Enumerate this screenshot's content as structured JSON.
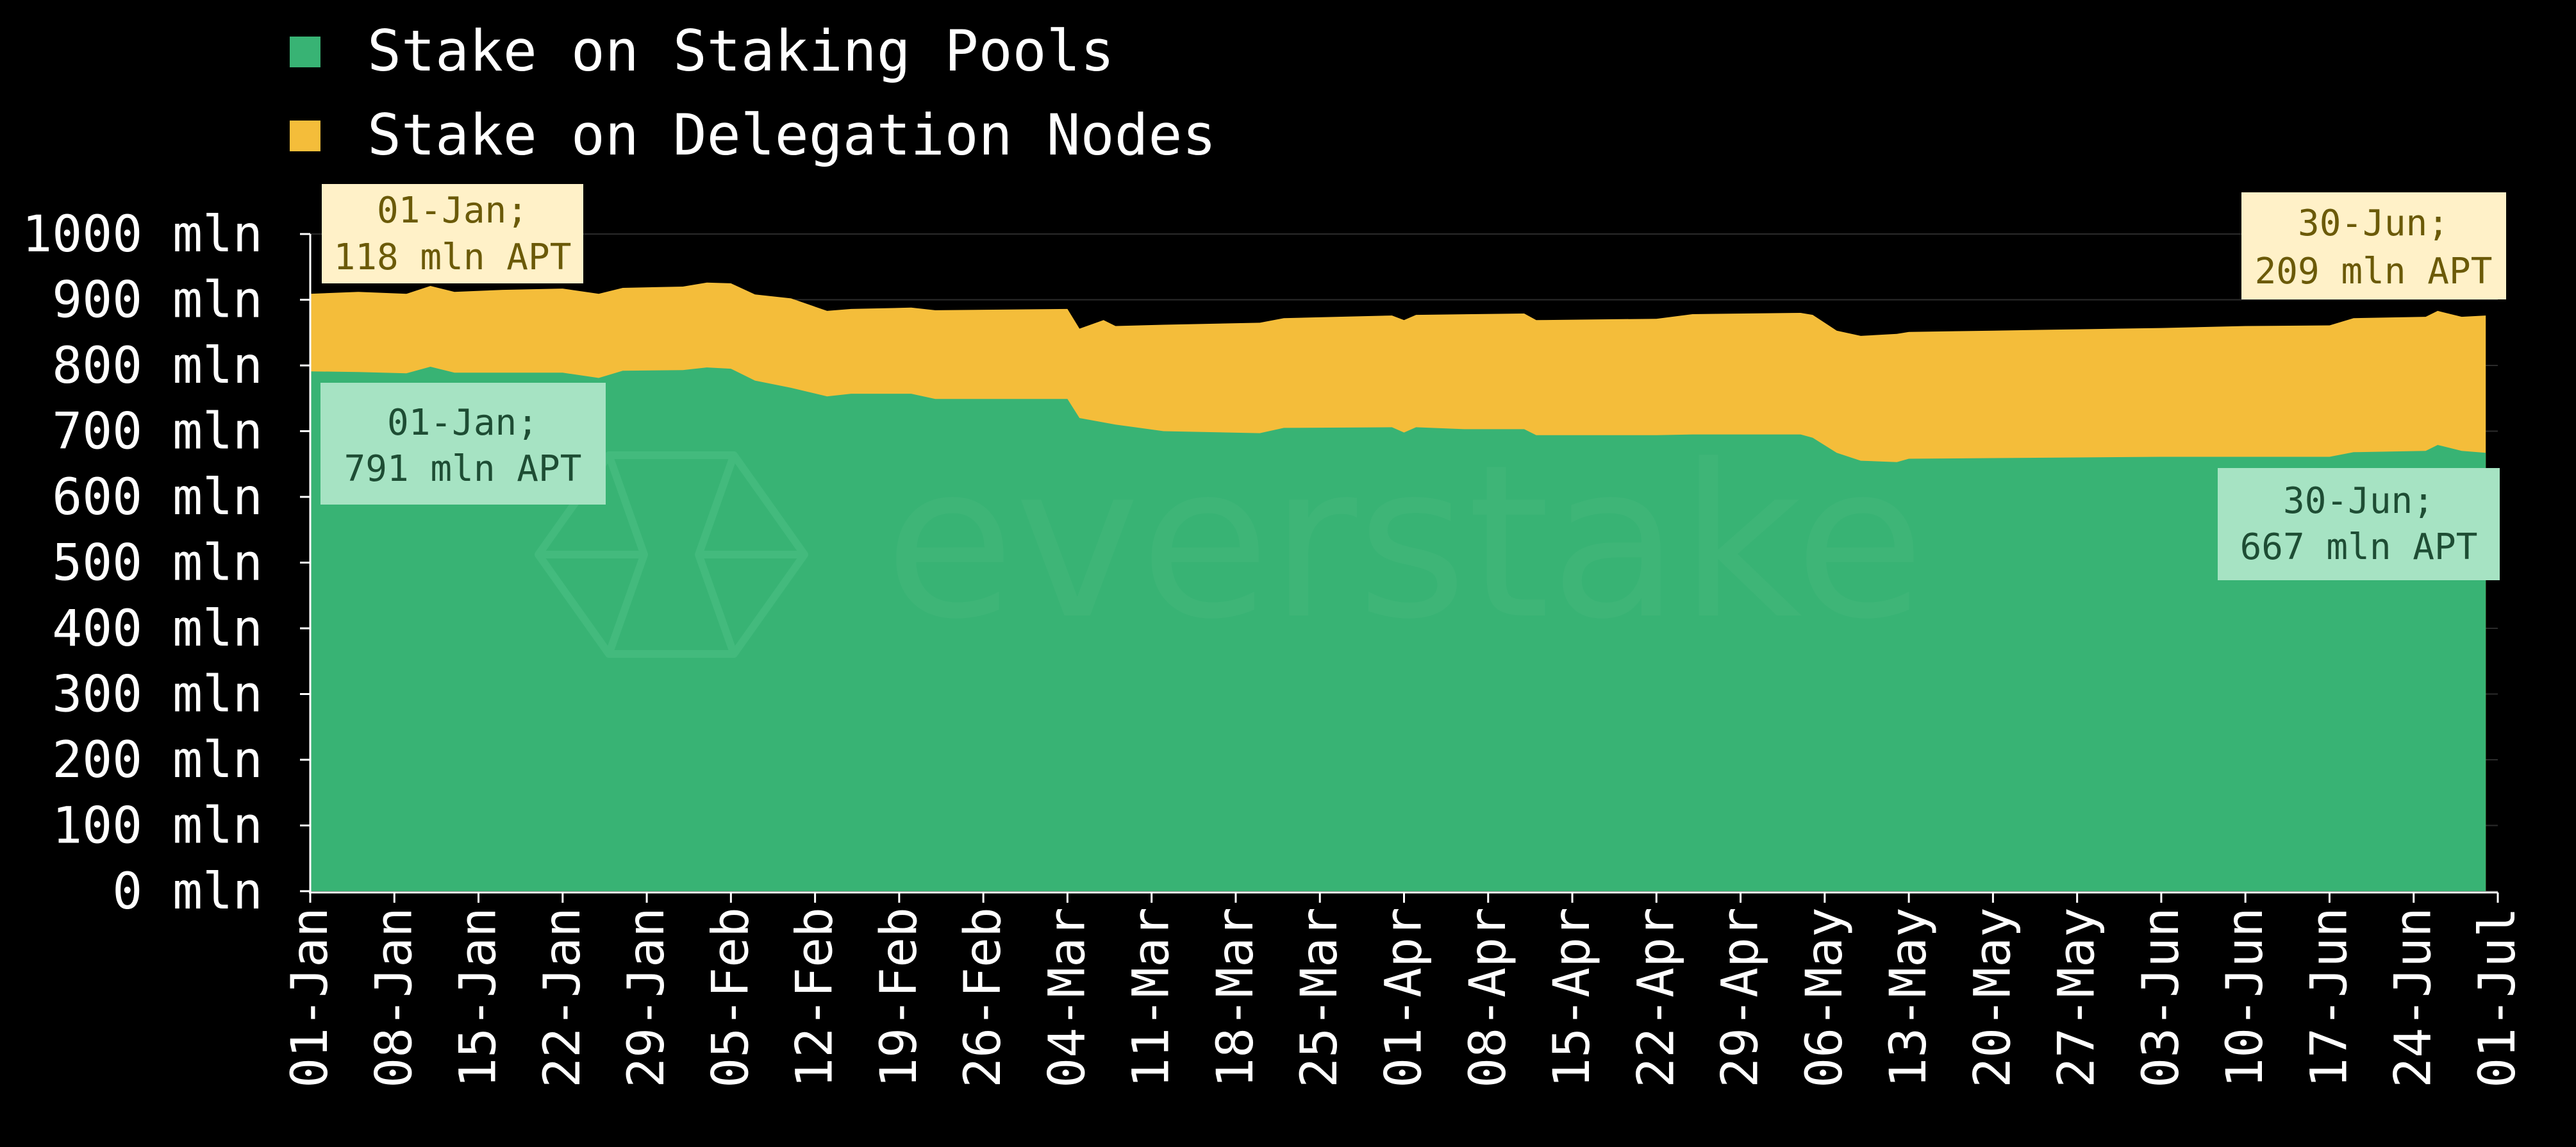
{
  "colors": {
    "background": "#000000",
    "staking_pools": "#38b374",
    "delegation_nodes": "#f4bd3a",
    "annotation_yellow_bg": "#fff1c8",
    "annotation_green_bg": "#a6e3c3",
    "axis": "#ffffff"
  },
  "watermark": {
    "text": "everstake"
  },
  "chart_data": {
    "type": "area",
    "stacked": true,
    "xlim": [
      "2024-01-01",
      "2024-07-01"
    ],
    "ylim": [
      0,
      1000
    ],
    "grid": "horizontal",
    "legend_placement": "top-left",
    "y_ticks": [
      {
        "value": 0,
        "label": "0 mln"
      },
      {
        "value": 100,
        "label": "100 mln"
      },
      {
        "value": 200,
        "label": "200 mln"
      },
      {
        "value": 300,
        "label": "300 mln"
      },
      {
        "value": 400,
        "label": "400 mln"
      },
      {
        "value": 500,
        "label": "500 mln"
      },
      {
        "value": 600,
        "label": "600 mln"
      },
      {
        "value": 700,
        "label": "700 mln"
      },
      {
        "value": 800,
        "label": "800 mln"
      },
      {
        "value": 900,
        "label": "900 mln"
      },
      {
        "value": 1000,
        "label": "1000 mln"
      }
    ],
    "x_ticks": [
      {
        "date": "2024-01-01",
        "label": "01-Jan"
      },
      {
        "date": "2024-01-08",
        "label": "08-Jan"
      },
      {
        "date": "2024-01-15",
        "label": "15-Jan"
      },
      {
        "date": "2024-01-22",
        "label": "22-Jan"
      },
      {
        "date": "2024-01-29",
        "label": "29-Jan"
      },
      {
        "date": "2024-02-05",
        "label": "05-Feb"
      },
      {
        "date": "2024-02-12",
        "label": "12-Feb"
      },
      {
        "date": "2024-02-19",
        "label": "19-Feb"
      },
      {
        "date": "2024-02-26",
        "label": "26-Feb"
      },
      {
        "date": "2024-03-04",
        "label": "04-Mar"
      },
      {
        "date": "2024-03-11",
        "label": "11-Mar"
      },
      {
        "date": "2024-03-18",
        "label": "18-Mar"
      },
      {
        "date": "2024-03-25",
        "label": "25-Mar"
      },
      {
        "date": "2024-04-01",
        "label": "01-Apr"
      },
      {
        "date": "2024-04-08",
        "label": "08-Apr"
      },
      {
        "date": "2024-04-15",
        "label": "15-Apr"
      },
      {
        "date": "2024-04-22",
        "label": "22-Apr"
      },
      {
        "date": "2024-04-29",
        "label": "29-Apr"
      },
      {
        "date": "2024-05-06",
        "label": "06-May"
      },
      {
        "date": "2024-05-13",
        "label": "13-May"
      },
      {
        "date": "2024-05-20",
        "label": "20-May"
      },
      {
        "date": "2024-05-27",
        "label": "27-May"
      },
      {
        "date": "2024-06-03",
        "label": "03-Jun"
      },
      {
        "date": "2024-06-10",
        "label": "10-Jun"
      },
      {
        "date": "2024-06-17",
        "label": "17-Jun"
      },
      {
        "date": "2024-06-24",
        "label": "24-Jun"
      },
      {
        "date": "2024-07-01",
        "label": "01-Jul"
      }
    ],
    "series": [
      {
        "name": "Stake on Staking Pools",
        "color": "#38b374",
        "points": [
          [
            "2024-01-01",
            791
          ],
          [
            "2024-01-05",
            790
          ],
          [
            "2024-01-09",
            788
          ],
          [
            "2024-01-11",
            798
          ],
          [
            "2024-01-13",
            789
          ],
          [
            "2024-01-17",
            789
          ],
          [
            "2024-01-22",
            789
          ],
          [
            "2024-01-25",
            781
          ],
          [
            "2024-01-27",
            792
          ],
          [
            "2024-02-01",
            793
          ],
          [
            "2024-02-03",
            797
          ],
          [
            "2024-02-05",
            795
          ],
          [
            "2024-02-07",
            777
          ],
          [
            "2024-02-10",
            766
          ],
          [
            "2024-02-13",
            753
          ],
          [
            "2024-02-15",
            757
          ],
          [
            "2024-02-20",
            757
          ],
          [
            "2024-02-22",
            749
          ],
          [
            "2024-03-04",
            749
          ],
          [
            "2024-03-05",
            720
          ],
          [
            "2024-03-08",
            710
          ],
          [
            "2024-03-12",
            700
          ],
          [
            "2024-03-20",
            697
          ],
          [
            "2024-03-22",
            705
          ],
          [
            "2024-03-31",
            706
          ],
          [
            "2024-04-01",
            698
          ],
          [
            "2024-04-02",
            706
          ],
          [
            "2024-04-06",
            703
          ],
          [
            "2024-04-11",
            703
          ],
          [
            "2024-04-12",
            694
          ],
          [
            "2024-04-22",
            694
          ],
          [
            "2024-04-25",
            695
          ],
          [
            "2024-05-04",
            695
          ],
          [
            "2024-05-05",
            690
          ],
          [
            "2024-05-07",
            667
          ],
          [
            "2024-05-09",
            655
          ],
          [
            "2024-05-12",
            653
          ],
          [
            "2024-05-13",
            658
          ],
          [
            "2024-05-20",
            659
          ],
          [
            "2024-05-27",
            660
          ],
          [
            "2024-06-03",
            661
          ],
          [
            "2024-06-10",
            661
          ],
          [
            "2024-06-17",
            661
          ],
          [
            "2024-06-19",
            668
          ],
          [
            "2024-06-25",
            670
          ],
          [
            "2024-06-26",
            679
          ],
          [
            "2024-06-28",
            670
          ],
          [
            "2024-06-30",
            667
          ]
        ]
      },
      {
        "name": "Stake on Delegation Nodes",
        "color": "#f4bd3a",
        "total_points": [
          [
            "2024-01-01",
            909
          ],
          [
            "2024-01-05",
            912
          ],
          [
            "2024-01-09",
            909
          ],
          [
            "2024-01-11",
            921
          ],
          [
            "2024-01-13",
            912
          ],
          [
            "2024-01-17",
            915
          ],
          [
            "2024-01-22",
            917
          ],
          [
            "2024-01-25",
            909
          ],
          [
            "2024-01-27",
            918
          ],
          [
            "2024-02-01",
            920
          ],
          [
            "2024-02-03",
            926
          ],
          [
            "2024-02-05",
            925
          ],
          [
            "2024-02-07",
            908
          ],
          [
            "2024-02-10",
            902
          ],
          [
            "2024-02-13",
            883
          ],
          [
            "2024-02-15",
            886
          ],
          [
            "2024-02-20",
            888
          ],
          [
            "2024-02-22",
            884
          ],
          [
            "2024-03-04",
            886
          ],
          [
            "2024-03-05",
            856
          ],
          [
            "2024-03-07",
            869
          ],
          [
            "2024-03-08",
            860
          ],
          [
            "2024-03-12",
            862
          ],
          [
            "2024-03-20",
            865
          ],
          [
            "2024-03-22",
            872
          ],
          [
            "2024-03-31",
            876
          ],
          [
            "2024-04-01",
            869
          ],
          [
            "2024-04-02",
            877
          ],
          [
            "2024-04-11",
            879
          ],
          [
            "2024-04-12",
            869
          ],
          [
            "2024-04-22",
            871
          ],
          [
            "2024-04-25",
            878
          ],
          [
            "2024-05-04",
            880
          ],
          [
            "2024-05-05",
            877
          ],
          [
            "2024-05-07",
            853
          ],
          [
            "2024-05-09",
            845
          ],
          [
            "2024-05-12",
            848
          ],
          [
            "2024-05-13",
            851
          ],
          [
            "2024-05-20",
            853
          ],
          [
            "2024-05-27",
            855
          ],
          [
            "2024-06-03",
            857
          ],
          [
            "2024-06-10",
            860
          ],
          [
            "2024-06-17",
            861
          ],
          [
            "2024-06-19",
            872
          ],
          [
            "2024-06-25",
            874
          ],
          [
            "2024-06-26",
            883
          ],
          [
            "2024-06-28",
            874
          ],
          [
            "2024-06-30",
            876
          ]
        ]
      }
    ],
    "annotations": [
      {
        "series": "Stake on Delegation Nodes",
        "line1": "01-Jan;",
        "line2": "118 mln APT"
      },
      {
        "series": "Stake on Staking Pools",
        "line1": "01-Jan;",
        "line2": "791 mln APT"
      },
      {
        "series": "Stake on Delegation Nodes",
        "line1": "30-Jun;",
        "line2": "209 mln APT"
      },
      {
        "series": "Stake on Staking Pools",
        "line1": "30-Jun;",
        "line2": "667 mln APT"
      }
    ]
  }
}
